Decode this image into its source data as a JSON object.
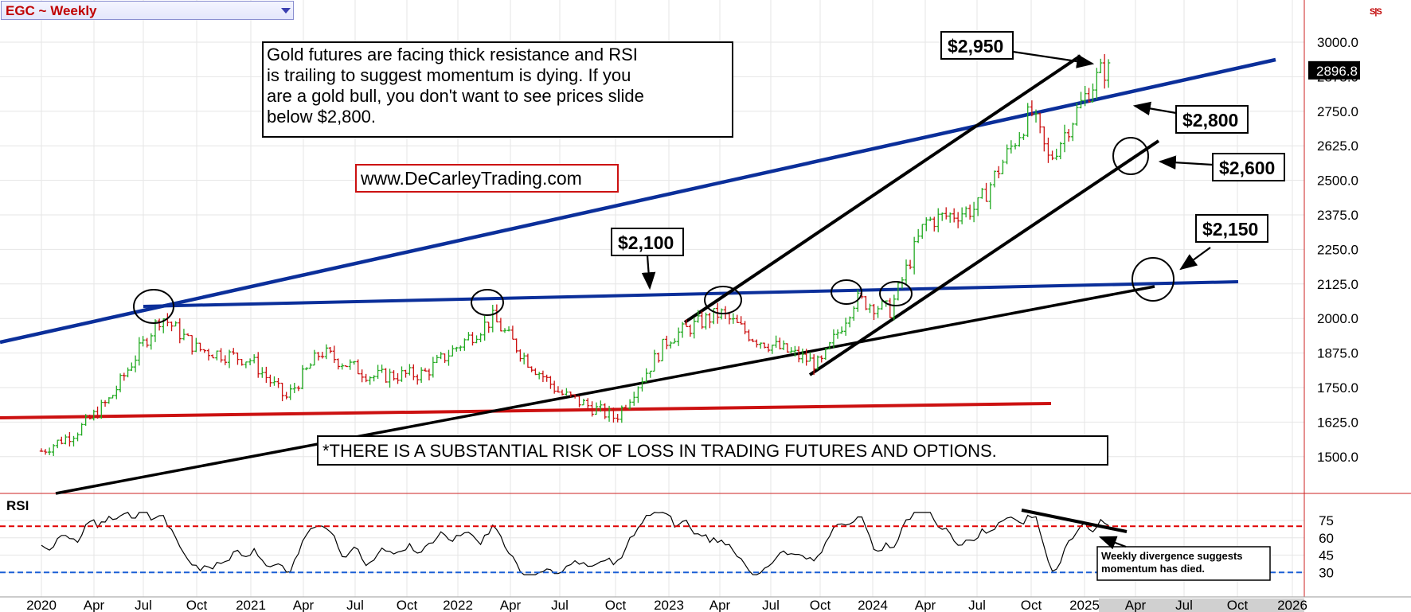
{
  "header": {
    "symbol": "EGC ~ Weekly"
  },
  "colors": {
    "up_bar": "#22aa22",
    "down_bar": "#cc1111",
    "blue_line": "#0b2f9a",
    "red_line": "#cc1111",
    "rsi_line": "#000000",
    "rsi_upper": "#e00000",
    "rsi_lower": "#1a5fd6",
    "grid": "#e6e6e6"
  },
  "annotations": {
    "commentary": [
      "Gold futures are facing thick resistance and RSI",
      " is trailing to suggest momentum is dying. If you",
      "are a gold bull, you don't want to see prices slide",
      " below $2,800."
    ],
    "website": "www.DeCarleyTrading.com",
    "disclaimer": "*THERE IS A SUBSTANTIAL RISK OF LOSS IN TRADING FUTURES AND OPTIONS.",
    "rsi_note": [
      "Weekly divergence suggests",
      " momentum has died."
    ],
    "price_labels": [
      "$2,950",
      "$2,800",
      "$2,600",
      "$2,150",
      "$2,100"
    ]
  },
  "chart_data": {
    "type": "ohlc",
    "title": "EGC ~ Weekly",
    "x_labels": [
      "2020",
      "Apr",
      "Jul",
      "Oct",
      "2021",
      "Apr",
      "Jul",
      "Oct",
      "2022",
      "Apr",
      "Jul",
      "Oct",
      "2023",
      "Apr",
      "Jul",
      "Oct",
      "2024",
      "Apr",
      "Jul",
      "Oct",
      "2025",
      "Apr",
      "Jul",
      "Oct",
      "2026"
    ],
    "price_axis": {
      "ylim": [
        1375,
        3075
      ],
      "ticks": [
        "3000.0",
        "2875.0",
        "2750.0",
        "2625.0",
        "2500.0",
        "2375.0",
        "2250.0",
        "2125.0",
        "2000.0",
        "1875.0",
        "1750.0",
        "1625.0",
        "1500.0"
      ],
      "last_price": "2896.8"
    },
    "price_series_approx": [
      {
        "date": "2020-01",
        "close": 1520
      },
      {
        "date": "2020-03",
        "close": 1590
      },
      {
        "date": "2020-05",
        "close": 1710
      },
      {
        "date": "2020-08",
        "close": 2010
      },
      {
        "date": "2020-10",
        "close": 1890
      },
      {
        "date": "2021-01",
        "close": 1850
      },
      {
        "date": "2021-03",
        "close": 1710
      },
      {
        "date": "2021-05",
        "close": 1880
      },
      {
        "date": "2021-08",
        "close": 1790
      },
      {
        "date": "2021-11",
        "close": 1800
      },
      {
        "date": "2022-03",
        "close": 2000
      },
      {
        "date": "2022-05",
        "close": 1850
      },
      {
        "date": "2022-07",
        "close": 1730
      },
      {
        "date": "2022-10",
        "close": 1640
      },
      {
        "date": "2023-01",
        "close": 1930
      },
      {
        "date": "2023-04",
        "close": 2020
      },
      {
        "date": "2023-06",
        "close": 1930
      },
      {
        "date": "2023-10",
        "close": 1830
      },
      {
        "date": "2023-12",
        "close": 2070
      },
      {
        "date": "2024-02",
        "close": 2030
      },
      {
        "date": "2024-04",
        "close": 2350
      },
      {
        "date": "2024-07",
        "close": 2400
      },
      {
        "date": "2024-10",
        "close": 2750
      },
      {
        "date": "2024-11",
        "close": 2570
      },
      {
        "date": "2025-01",
        "close": 2800
      },
      {
        "date": "2025-02",
        "close": 2897
      }
    ],
    "rsi": {
      "label": "RSI",
      "ticks": [
        "75",
        "60",
        "45",
        "30"
      ],
      "upper": 70,
      "lower": 30
    }
  }
}
